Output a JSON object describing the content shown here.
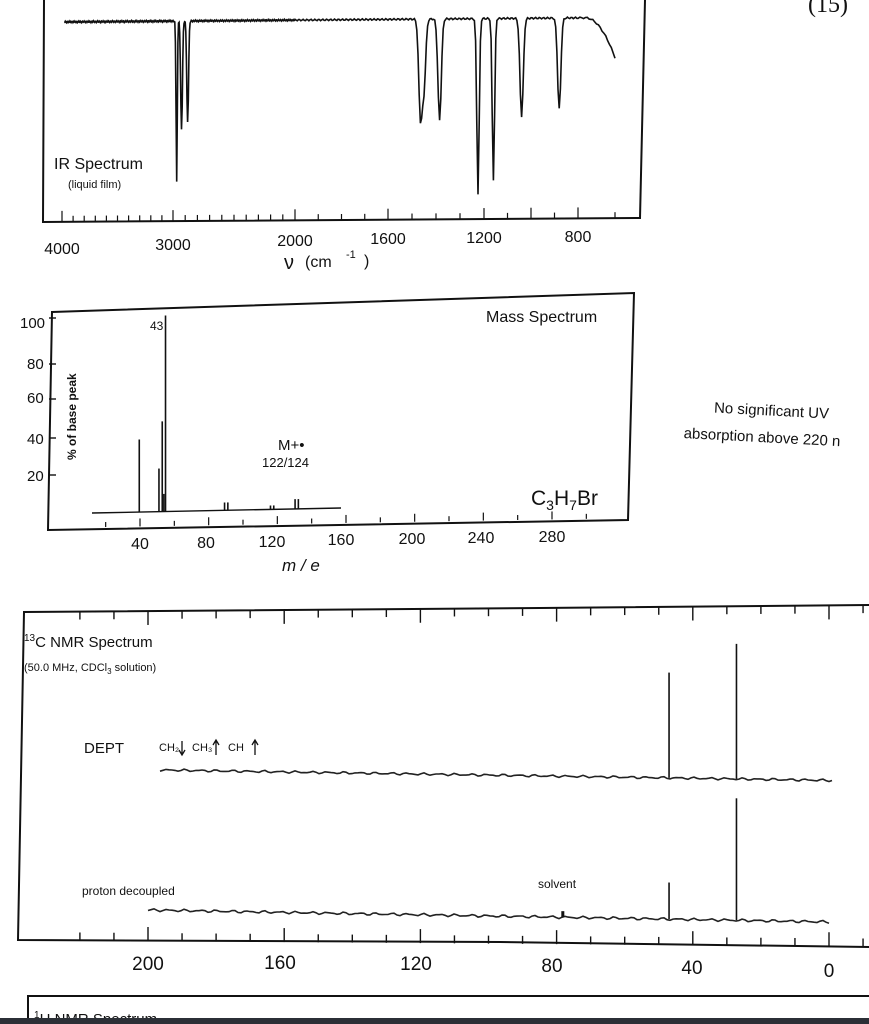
{
  "page": {
    "problem_number": "(15)"
  },
  "ir": {
    "title": "IR Spectrum",
    "subtitle": "(liquid film)",
    "xlabel_symbol": "ν",
    "xlabel_unit": "(cm",
    "xlabel_exp": "-1",
    "xlabel_close": ")",
    "ticks": [
      "4000",
      "3000",
      "2000",
      "1600",
      "1200",
      "800"
    ]
  },
  "mass": {
    "title": "Mass Spectrum",
    "ylabel": "% of base peak",
    "xlabel": "m / e",
    "formula_parts": [
      "C",
      "3",
      "H",
      "7",
      "Br"
    ],
    "base_peak_label": "43",
    "molecular_ion_label": "M+•",
    "molecular_ion_mass": "122/124",
    "yticks": [
      "100",
      "80",
      "60",
      "40",
      "20"
    ],
    "xticks": [
      "40",
      "80",
      "120",
      "160",
      "200",
      "240",
      "280"
    ]
  },
  "uv": {
    "line1": "No significant UV",
    "line2": "absorption above 220 n"
  },
  "cnmr": {
    "title_sup": "13",
    "title": "C NMR Spectrum",
    "conditions": "(50.0 MHz, CDCl",
    "conditions_sub": "3",
    "conditions_end": " solution)",
    "dept_label": "DEPT",
    "dept_ch2": "CH₂",
    "dept_ch3": "CH₃",
    "dept_ch": "CH",
    "decoupled_label": "proton decoupled",
    "solvent_label": "solvent",
    "xticks": [
      "200",
      "160",
      "120",
      "80",
      "40",
      "0"
    ]
  },
  "hnmr": {
    "title_sup": "1",
    "title": "H NMR Spectrum"
  },
  "chart_data": [
    {
      "type": "line",
      "title": "IR Spectrum",
      "subtitle": "(liquid film)",
      "xlabel": "ν (cm-1)",
      "x_reversed": true,
      "xticks": [
        4000,
        3000,
        2000,
        1600,
        1200,
        800
      ],
      "absorption_bands": [
        {
          "x": 2970,
          "depth": 0.92
        },
        {
          "x": 2930,
          "depth": 0.62
        },
        {
          "x": 2880,
          "depth": 0.58
        },
        {
          "x": 1465,
          "depth": 0.55
        },
        {
          "x": 1450,
          "depth": 0.38
        },
        {
          "x": 1385,
          "depth": 0.58
        },
        {
          "x": 1225,
          "depth": 1.0
        },
        {
          "x": 1160,
          "depth": 0.92
        },
        {
          "x": 1040,
          "depth": 0.56
        },
        {
          "x": 880,
          "depth": 0.52
        }
      ]
    },
    {
      "type": "bar",
      "title": "Mass Spectrum",
      "xlabel": "m / e",
      "ylabel": "% of base peak",
      "xlim": [
        0,
        300
      ],
      "ylim": [
        0,
        100
      ],
      "peaks": [
        {
          "x": 27,
          "y": 37
        },
        {
          "x": 39,
          "y": 22
        },
        {
          "x": 41,
          "y": 46
        },
        {
          "x": 42,
          "y": 9
        },
        {
          "x": 43,
          "y": 100
        },
        {
          "x": 79,
          "y": 4
        },
        {
          "x": 81,
          "y": 4
        },
        {
          "x": 107,
          "y": 2
        },
        {
          "x": 109,
          "y": 2
        },
        {
          "x": 122,
          "y": 5
        },
        {
          "x": 124,
          "y": 5
        }
      ]
    },
    {
      "type": "line",
      "title": "13C NMR Spectrum",
      "subtitle": "(50.0 MHz, CDCl3 solution)",
      "x_reversed": true,
      "xlim": [
        0,
        200
      ],
      "xticks": [
        200,
        160,
        120,
        80,
        40,
        0
      ],
      "series": [
        {
          "name": "DEPT",
          "peaks": [
            {
              "x": 45.8,
              "height": 0.78
            },
            {
              "x": 26.0,
              "height": 1.0
            }
          ]
        },
        {
          "name": "proton decoupled",
          "peaks": [
            {
              "x": 77.0,
              "height": 0.05
            },
            {
              "x": 45.8,
              "height": 0.3
            },
            {
              "x": 26.0,
              "height": 1.0
            }
          ]
        }
      ]
    }
  ]
}
